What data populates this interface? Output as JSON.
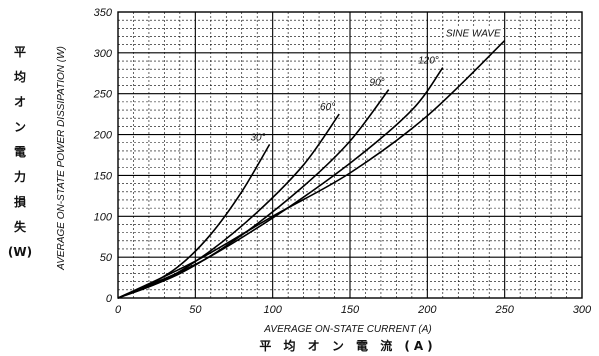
{
  "chart_data": {
    "type": "line",
    "xlabel": "AVERAGE ON-STATE CURRENT (A)",
    "xlabel_jp": "平 均 オ ン 電 流 (A)",
    "ylabel": "AVERAGE ON-STATE POWER DISSIPATION (W)",
    "ylabel_jp": [
      "平",
      "均",
      "オ",
      "ン",
      "電",
      "力",
      "損",
      "失",
      "(W)"
    ],
    "xlim": [
      0,
      300
    ],
    "ylim": [
      0,
      350
    ],
    "x_ticks": [
      "0",
      "50",
      "100",
      "150",
      "200",
      "250",
      "300"
    ],
    "y_ticks": [
      "0",
      "50",
      "100",
      "150",
      "200",
      "250",
      "300",
      "350"
    ],
    "grid": true,
    "series": [
      {
        "name": "30°",
        "x": [
          0,
          20,
          40,
          60,
          80,
          98
        ],
        "y": [
          0,
          16,
          40,
          78,
          130,
          188
        ]
      },
      {
        "name": "60°",
        "x": [
          0,
          30,
          60,
          90,
          120,
          143
        ],
        "y": [
          0,
          22,
          58,
          105,
          163,
          225
        ]
      },
      {
        "name": "90°",
        "x": [
          0,
          40,
          80,
          120,
          150,
          175
        ],
        "y": [
          0,
          30,
          77,
          137,
          192,
          255
        ]
      },
      {
        "name": "120°",
        "x": [
          0,
          50,
          100,
          150,
          190,
          210
        ],
        "y": [
          0,
          41,
          98,
          165,
          230,
          282
        ]
      },
      {
        "name": "SINE WAVE",
        "x": [
          0,
          50,
          100,
          150,
          200,
          250
        ],
        "y": [
          0,
          45,
          100,
          153,
          223,
          315
        ]
      }
    ]
  }
}
